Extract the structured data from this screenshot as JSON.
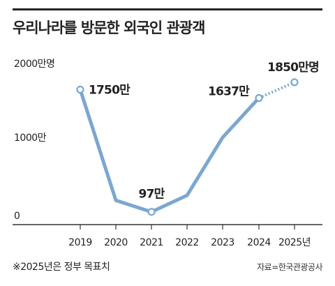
{
  "title": "우리나라를 방문한 외국인 관광객",
  "footnote": "※2025년은 정부 목표치",
  "source": "자료=한국관광공사",
  "colors": {
    "line": "#7ba7cf",
    "text": "#222222",
    "axis": "#333333"
  },
  "chart_data": {
    "type": "line",
    "title": "우리나라를 방문한 외국인 관광객",
    "x": [
      "2019",
      "2020",
      "2021",
      "2022",
      "2023",
      "2024",
      "2025년"
    ],
    "series": [
      {
        "values": [
          1750,
          252,
          97,
          320,
          1103,
          1637,
          1850
        ]
      }
    ],
    "projected_from_index": 5,
    "ylim": [
      0,
      2000
    ],
    "y_ticks": [
      {
        "value": 2000,
        "label": "2000만명"
      },
      {
        "value": 1000,
        "label": "1000만"
      },
      {
        "value": 0,
        "label": "0"
      }
    ],
    "annotations": [
      {
        "index": 0,
        "label": "1750만"
      },
      {
        "index": 2,
        "label": "97만"
      },
      {
        "index": 5,
        "label": "1637만"
      },
      {
        "index": 6,
        "label": "1850만명"
      }
    ],
    "grid": false
  }
}
